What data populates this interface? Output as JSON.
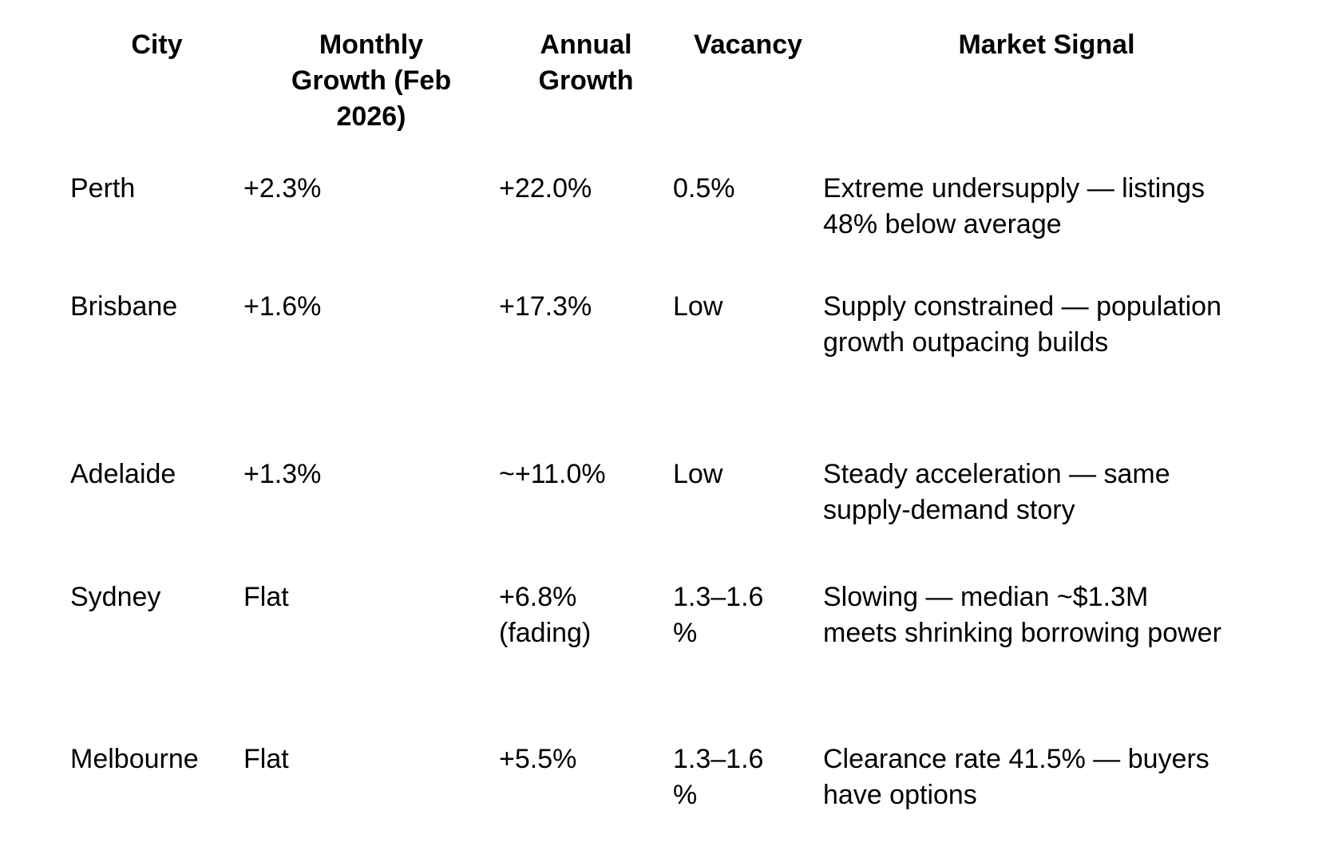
{
  "table": {
    "headers": [
      {
        "id": "city",
        "lines": [
          "City"
        ]
      },
      {
        "id": "monthly",
        "lines": [
          "Monthly",
          "Growth (Feb",
          "2026)"
        ]
      },
      {
        "id": "annual",
        "lines": [
          "Annual",
          "Growth"
        ]
      },
      {
        "id": "vacancy",
        "lines": [
          "Vacancy"
        ]
      },
      {
        "id": "signal",
        "lines": [
          "Market Signal"
        ]
      }
    ],
    "rows": [
      {
        "city": [
          "Perth"
        ],
        "monthly": [
          "+2.3%"
        ],
        "annual": [
          "+22.0%"
        ],
        "vacancy": [
          "0.5%"
        ],
        "signal": [
          "Extreme undersupply — listings",
          "48% below average"
        ]
      },
      {
        "city": [
          "Brisbane"
        ],
        "monthly": [
          "+1.6%"
        ],
        "annual": [
          "+17.3%"
        ],
        "vacancy": [
          "Low"
        ],
        "signal": [
          "Supply constrained — population",
          "growth outpacing builds"
        ]
      },
      {
        "city": [
          "Adelaide"
        ],
        "monthly": [
          "+1.3%"
        ],
        "annual": [
          "~+11.0%"
        ],
        "vacancy": [
          "Low"
        ],
        "signal": [
          "Steady acceleration — same",
          "supply-demand story"
        ]
      },
      {
        "city": [
          "Sydney"
        ],
        "monthly": [
          "Flat"
        ],
        "annual": [
          "+6.8%",
          "(fading)"
        ],
        "vacancy": [
          "1.3–1.6",
          "%"
        ],
        "signal": [
          "Slowing — median ~$1.3M",
          "meets shrinking borrowing power"
        ]
      },
      {
        "city": [
          "Melbourne"
        ],
        "monthly": [
          "Flat"
        ],
        "annual": [
          "+5.5%"
        ],
        "vacancy": [
          "1.3–1.6",
          "%"
        ],
        "signal": [
          "Clearance rate 41.5% — buyers",
          "have options"
        ]
      }
    ],
    "text_color": "#000000",
    "background_color": "#ffffff"
  }
}
